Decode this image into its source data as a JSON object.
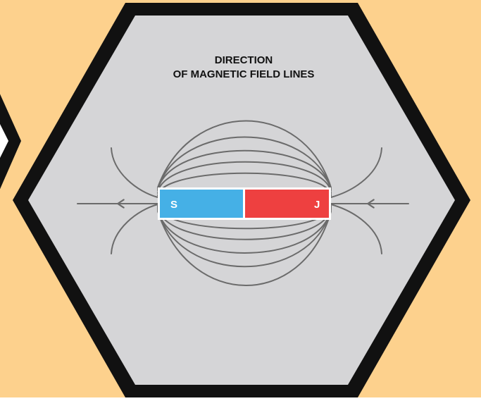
{
  "title": {
    "line1": "DIRECTION",
    "line2": "OF MAGNETIC FIELD LINES"
  },
  "magnet": {
    "left_pole": "S",
    "right_pole": "J"
  },
  "colors": {
    "background": "#FDD18D",
    "hexagon_border": "#111111",
    "hexagon_fill": "#D5D5D7",
    "field_line": "#6B6B6B",
    "pole_s": "#45B0E6",
    "pole_j": "#EE4040",
    "pole_text": "#FFFFFF",
    "title_text": "#111111"
  }
}
